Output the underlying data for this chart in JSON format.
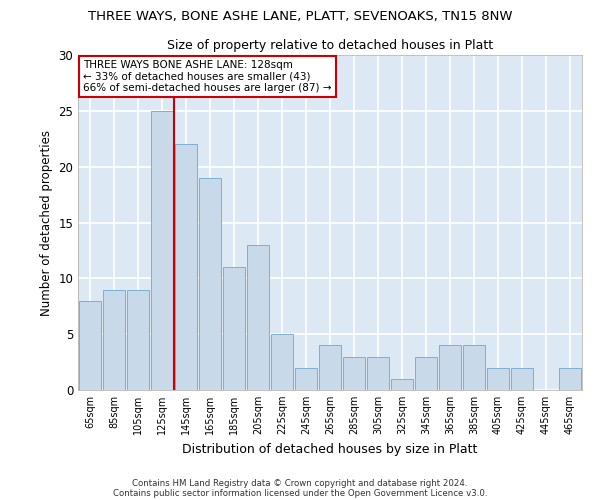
{
  "title1": "THREE WAYS, BONE ASHE LANE, PLATT, SEVENOAKS, TN15 8NW",
  "title2": "Size of property relative to detached houses in Platt",
  "xlabel": "Distribution of detached houses by size in Platt",
  "ylabel": "Number of detached properties",
  "categories": [
    "65sqm",
    "85sqm",
    "105sqm",
    "125sqm",
    "145sqm",
    "165sqm",
    "185sqm",
    "205sqm",
    "225sqm",
    "245sqm",
    "265sqm",
    "285sqm",
    "305sqm",
    "325sqm",
    "345sqm",
    "365sqm",
    "385sqm",
    "405sqm",
    "425sqm",
    "445sqm",
    "465sqm"
  ],
  "values": [
    8,
    9,
    9,
    25,
    22,
    19,
    11,
    13,
    5,
    2,
    4,
    3,
    3,
    1,
    3,
    4,
    4,
    2,
    2,
    0,
    2
  ],
  "bar_color": "#c8d9ea",
  "bar_edge_color": "#7bafd4",
  "vline_x": 3.5,
  "vline_color": "#cc0000",
  "annotation_title": "THREE WAYS BONE ASHE LANE: 128sqm",
  "annotation_line2": "← 33% of detached houses are smaller (43)",
  "annotation_line3": "66% of semi-detached houses are larger (87) →",
  "annotation_box_color": "#ffffff",
  "annotation_edge_color": "#cc0000",
  "ylim": [
    0,
    30
  ],
  "yticks": [
    0,
    5,
    10,
    15,
    20,
    25,
    30
  ],
  "plot_bg_color": "#dce9f5",
  "fig_bg_color": "#ffffff",
  "grid_color": "#ffffff",
  "footer1": "Contains HM Land Registry data © Crown copyright and database right 2024.",
  "footer2": "Contains public sector information licensed under the Open Government Licence v3.0."
}
